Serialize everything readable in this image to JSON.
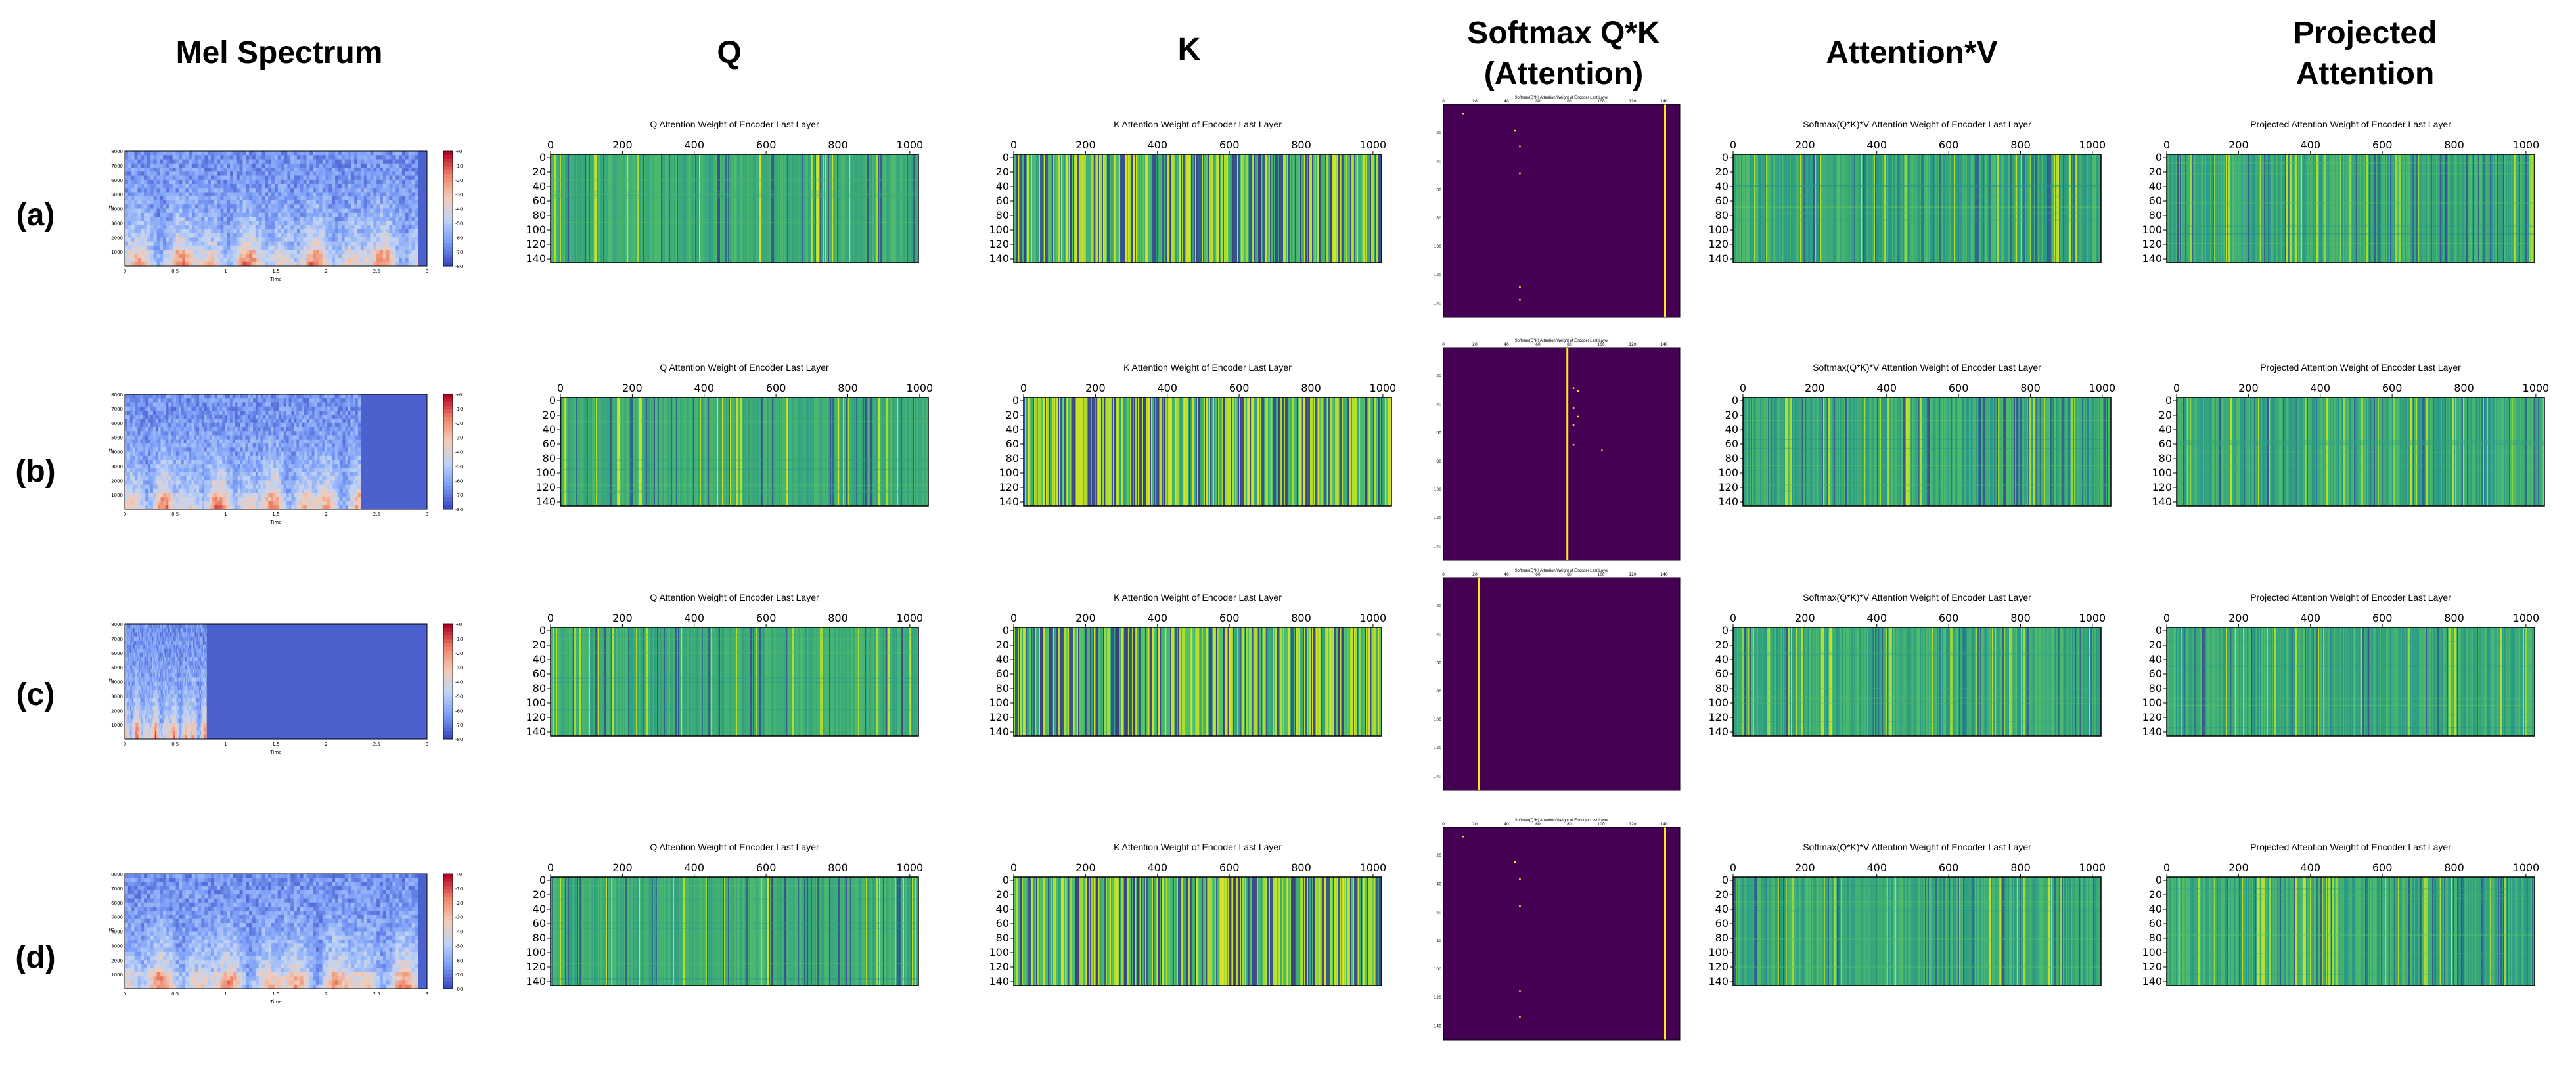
{
  "figure": {
    "columns": [
      "Mel Spectrum",
      "Q",
      "K",
      "Softmax Q*K\n(Attention)",
      "Attention*V",
      "Projected\nAttention"
    ],
    "rows": [
      "(a)",
      "(b)",
      "(c)",
      "(d)"
    ]
  },
  "panel_titles": {
    "q": "Q Attention Weight of Encoder Last Layer",
    "k": "K Attention Weight of Encoder Last Layer",
    "softmax": "Softmax(Q*K) Attention Weight of Encoder Last Layer",
    "attnv": "Softmax(Q*K)*V Attention Weight of Encoder Last Layer",
    "proj": "Projected Attention Weight of Encoder Last Layer"
  },
  "axes": {
    "heatmap_x_ticks": [
      "0",
      "200",
      "400",
      "600",
      "800",
      "1000"
    ],
    "heatmap_y_ticks": [
      "0",
      "20",
      "40",
      "60",
      "80",
      "100",
      "120",
      "140"
    ],
    "softmax_x_ticks": [
      "0",
      "20",
      "40",
      "60",
      "80",
      "100",
      "120",
      "140"
    ],
    "softmax_y_ticks": [
      "20",
      "40",
      "60",
      "80",
      "100",
      "120",
      "140"
    ],
    "mel_y_ticks": [
      "1000",
      "2000",
      "3000",
      "4000",
      "5000",
      "6000",
      "7000",
      "8000"
    ],
    "mel_x_ticks": [
      "0",
      "0.5",
      "1",
      "1.5",
      "2",
      "2.5",
      "3"
    ],
    "mel_xlabel": "Time",
    "mel_ylabel": "Hz",
    "colorbar_ticks": [
      "+0",
      "-10",
      "-20",
      "-30",
      "-40",
      "-50",
      "-60",
      "-70",
      "-80"
    ]
  },
  "chart_data": [
    {
      "type": "heatmap",
      "panel": "mel",
      "row": "(a)",
      "speech_extent": 0.97,
      "colorbar_range": [
        -80,
        0
      ]
    },
    {
      "type": "heatmap",
      "panel": "mel",
      "row": "(b)",
      "speech_extent": 0.78,
      "colorbar_range": [
        -80,
        0
      ]
    },
    {
      "type": "heatmap",
      "panel": "mel",
      "row": "(c)",
      "speech_extent": 0.27,
      "colorbar_range": [
        -80,
        0
      ]
    },
    {
      "type": "heatmap",
      "panel": "mel",
      "row": "(d)",
      "speech_extent": 0.97,
      "colorbar_range": [
        -80,
        0
      ]
    },
    {
      "type": "heatmap",
      "panel": "softmax",
      "row": "(a)",
      "main_column": 140,
      "dots": [
        [
          12,
          6
        ],
        [
          45,
          18
        ],
        [
          48,
          29
        ],
        [
          48,
          48
        ],
        [
          48,
          128
        ],
        [
          48,
          137
        ]
      ]
    },
    {
      "type": "heatmap",
      "panel": "softmax",
      "row": "(b)",
      "main_column": 78,
      "dots": [
        [
          82,
          28
        ],
        [
          82,
          42
        ],
        [
          82,
          54
        ],
        [
          82,
          68
        ],
        [
          85,
          30
        ],
        [
          85,
          48
        ],
        [
          100,
          72
        ]
      ]
    },
    {
      "type": "heatmap",
      "panel": "softmax",
      "row": "(c)",
      "main_column": 22,
      "dots": []
    },
    {
      "type": "heatmap",
      "panel": "softmax",
      "row": "(d)",
      "main_column": 140,
      "dots": [
        [
          12,
          6
        ],
        [
          45,
          24
        ],
        [
          48,
          36
        ],
        [
          48,
          55
        ],
        [
          48,
          115
        ],
        [
          48,
          133
        ]
      ]
    }
  ]
}
